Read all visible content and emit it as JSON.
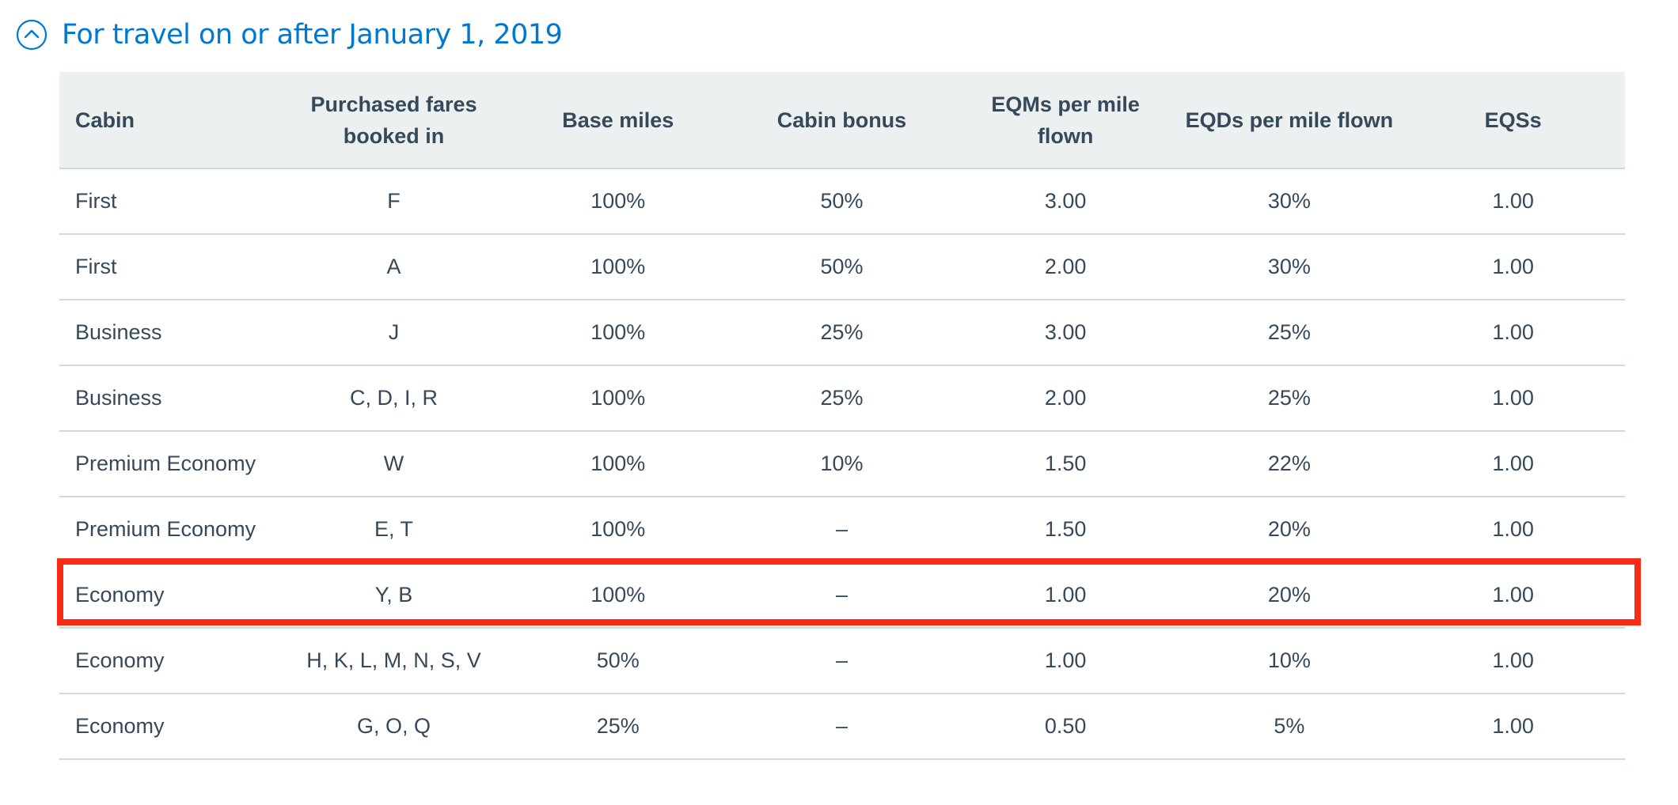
{
  "section": {
    "title": "For travel on or after January 1, 2019",
    "toggle_icon": "chevron-up-circle-icon",
    "accent_color": "#0078d2"
  },
  "table": {
    "headers": [
      "Cabin",
      "Purchased fares booked in",
      "Base miles",
      "Cabin bonus",
      "EQMs per mile flown",
      "EQDs per mile flown",
      "EQSs"
    ],
    "rows": [
      [
        "First",
        "F",
        "100%",
        "50%",
        "3.00",
        "30%",
        "1.00"
      ],
      [
        "First",
        "A",
        "100%",
        "50%",
        "2.00",
        "30%",
        "1.00"
      ],
      [
        "Business",
        "J",
        "100%",
        "25%",
        "3.00",
        "25%",
        "1.00"
      ],
      [
        "Business",
        "C, D, I, R",
        "100%",
        "25%",
        "2.00",
        "25%",
        "1.00"
      ],
      [
        "Premium Economy",
        "W",
        "100%",
        "10%",
        "1.50",
        "22%",
        "1.00"
      ],
      [
        "Premium Economy",
        "E, T",
        "100%",
        "–",
        "1.50",
        "20%",
        "1.00"
      ],
      [
        "Economy",
        "Y, B",
        "100%",
        "–",
        "1.00",
        "20%",
        "1.00"
      ],
      [
        "Economy",
        "H, K, L, M, N, S, V",
        "50%",
        "–",
        "1.00",
        "10%",
        "1.00"
      ],
      [
        "Economy",
        "G, O, Q",
        "25%",
        "–",
        "0.50",
        "5%",
        "1.00"
      ]
    ],
    "header_bg": "#edf0f1",
    "border_color": "#d0d9df",
    "text_color": "#36495a"
  },
  "highlight": {
    "row_index": 6,
    "color": "#fa2b14"
  }
}
